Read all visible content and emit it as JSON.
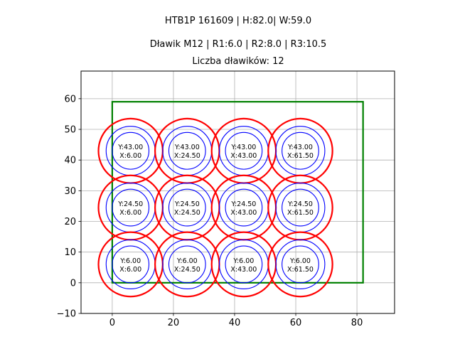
{
  "chart_data": {
    "type": "scatter",
    "titles": [
      "HTB1P 161609 | H:82.0| W:59.0",
      "Dławik M12 | R1:6.0 | R2:8.0 | R3:10.5",
      "Liczba dławików: 12"
    ],
    "xlabel": "",
    "ylabel": "",
    "xlim": [
      -10.2,
      92.3
    ],
    "ylim": [
      -10,
      69
    ],
    "xticks": [
      0,
      20,
      40,
      60,
      80
    ],
    "yticks": [
      -10,
      0,
      10,
      20,
      30,
      40,
      50,
      60
    ],
    "grid": true,
    "enclosure": {
      "x": 0,
      "y": 0,
      "width": 82.0,
      "height": 59.0,
      "color": "#008000"
    },
    "radii": [
      {
        "r": 6.0,
        "color": "#0000ff"
      },
      {
        "r": 8.0,
        "color": "#0000ff"
      },
      {
        "r": 10.5,
        "color": "#ff0000"
      }
    ],
    "points": [
      {
        "x": 6.0,
        "y": 43.0,
        "label_y": "Y:43.00",
        "label_x": "X:6.00"
      },
      {
        "x": 24.5,
        "y": 43.0,
        "label_y": "Y:43.00",
        "label_x": "X:24.50"
      },
      {
        "x": 43.0,
        "y": 43.0,
        "label_y": "Y:43.00",
        "label_x": "X:43.00"
      },
      {
        "x": 61.5,
        "y": 43.0,
        "label_y": "Y:43.00",
        "label_x": "X:61.50"
      },
      {
        "x": 6.0,
        "y": 24.5,
        "label_y": "Y:24.50",
        "label_x": "X:6.00"
      },
      {
        "x": 24.5,
        "y": 24.5,
        "label_y": "Y:24.50",
        "label_x": "X:24.50"
      },
      {
        "x": 43.0,
        "y": 24.5,
        "label_y": "Y:24.50",
        "label_x": "X:43.00"
      },
      {
        "x": 61.5,
        "y": 24.5,
        "label_y": "Y:24.50",
        "label_x": "X:61.50"
      },
      {
        "x": 6.0,
        "y": 6.0,
        "label_y": "Y:6.00",
        "label_x": "X:6.00"
      },
      {
        "x": 24.5,
        "y": 6.0,
        "label_y": "Y:6.00",
        "label_x": "X:24.50"
      },
      {
        "x": 43.0,
        "y": 6.0,
        "label_y": "Y:6.00",
        "label_x": "X:43.00"
      },
      {
        "x": 61.5,
        "y": 6.0,
        "label_y": "Y:6.00",
        "label_x": "X:61.50"
      }
    ]
  }
}
